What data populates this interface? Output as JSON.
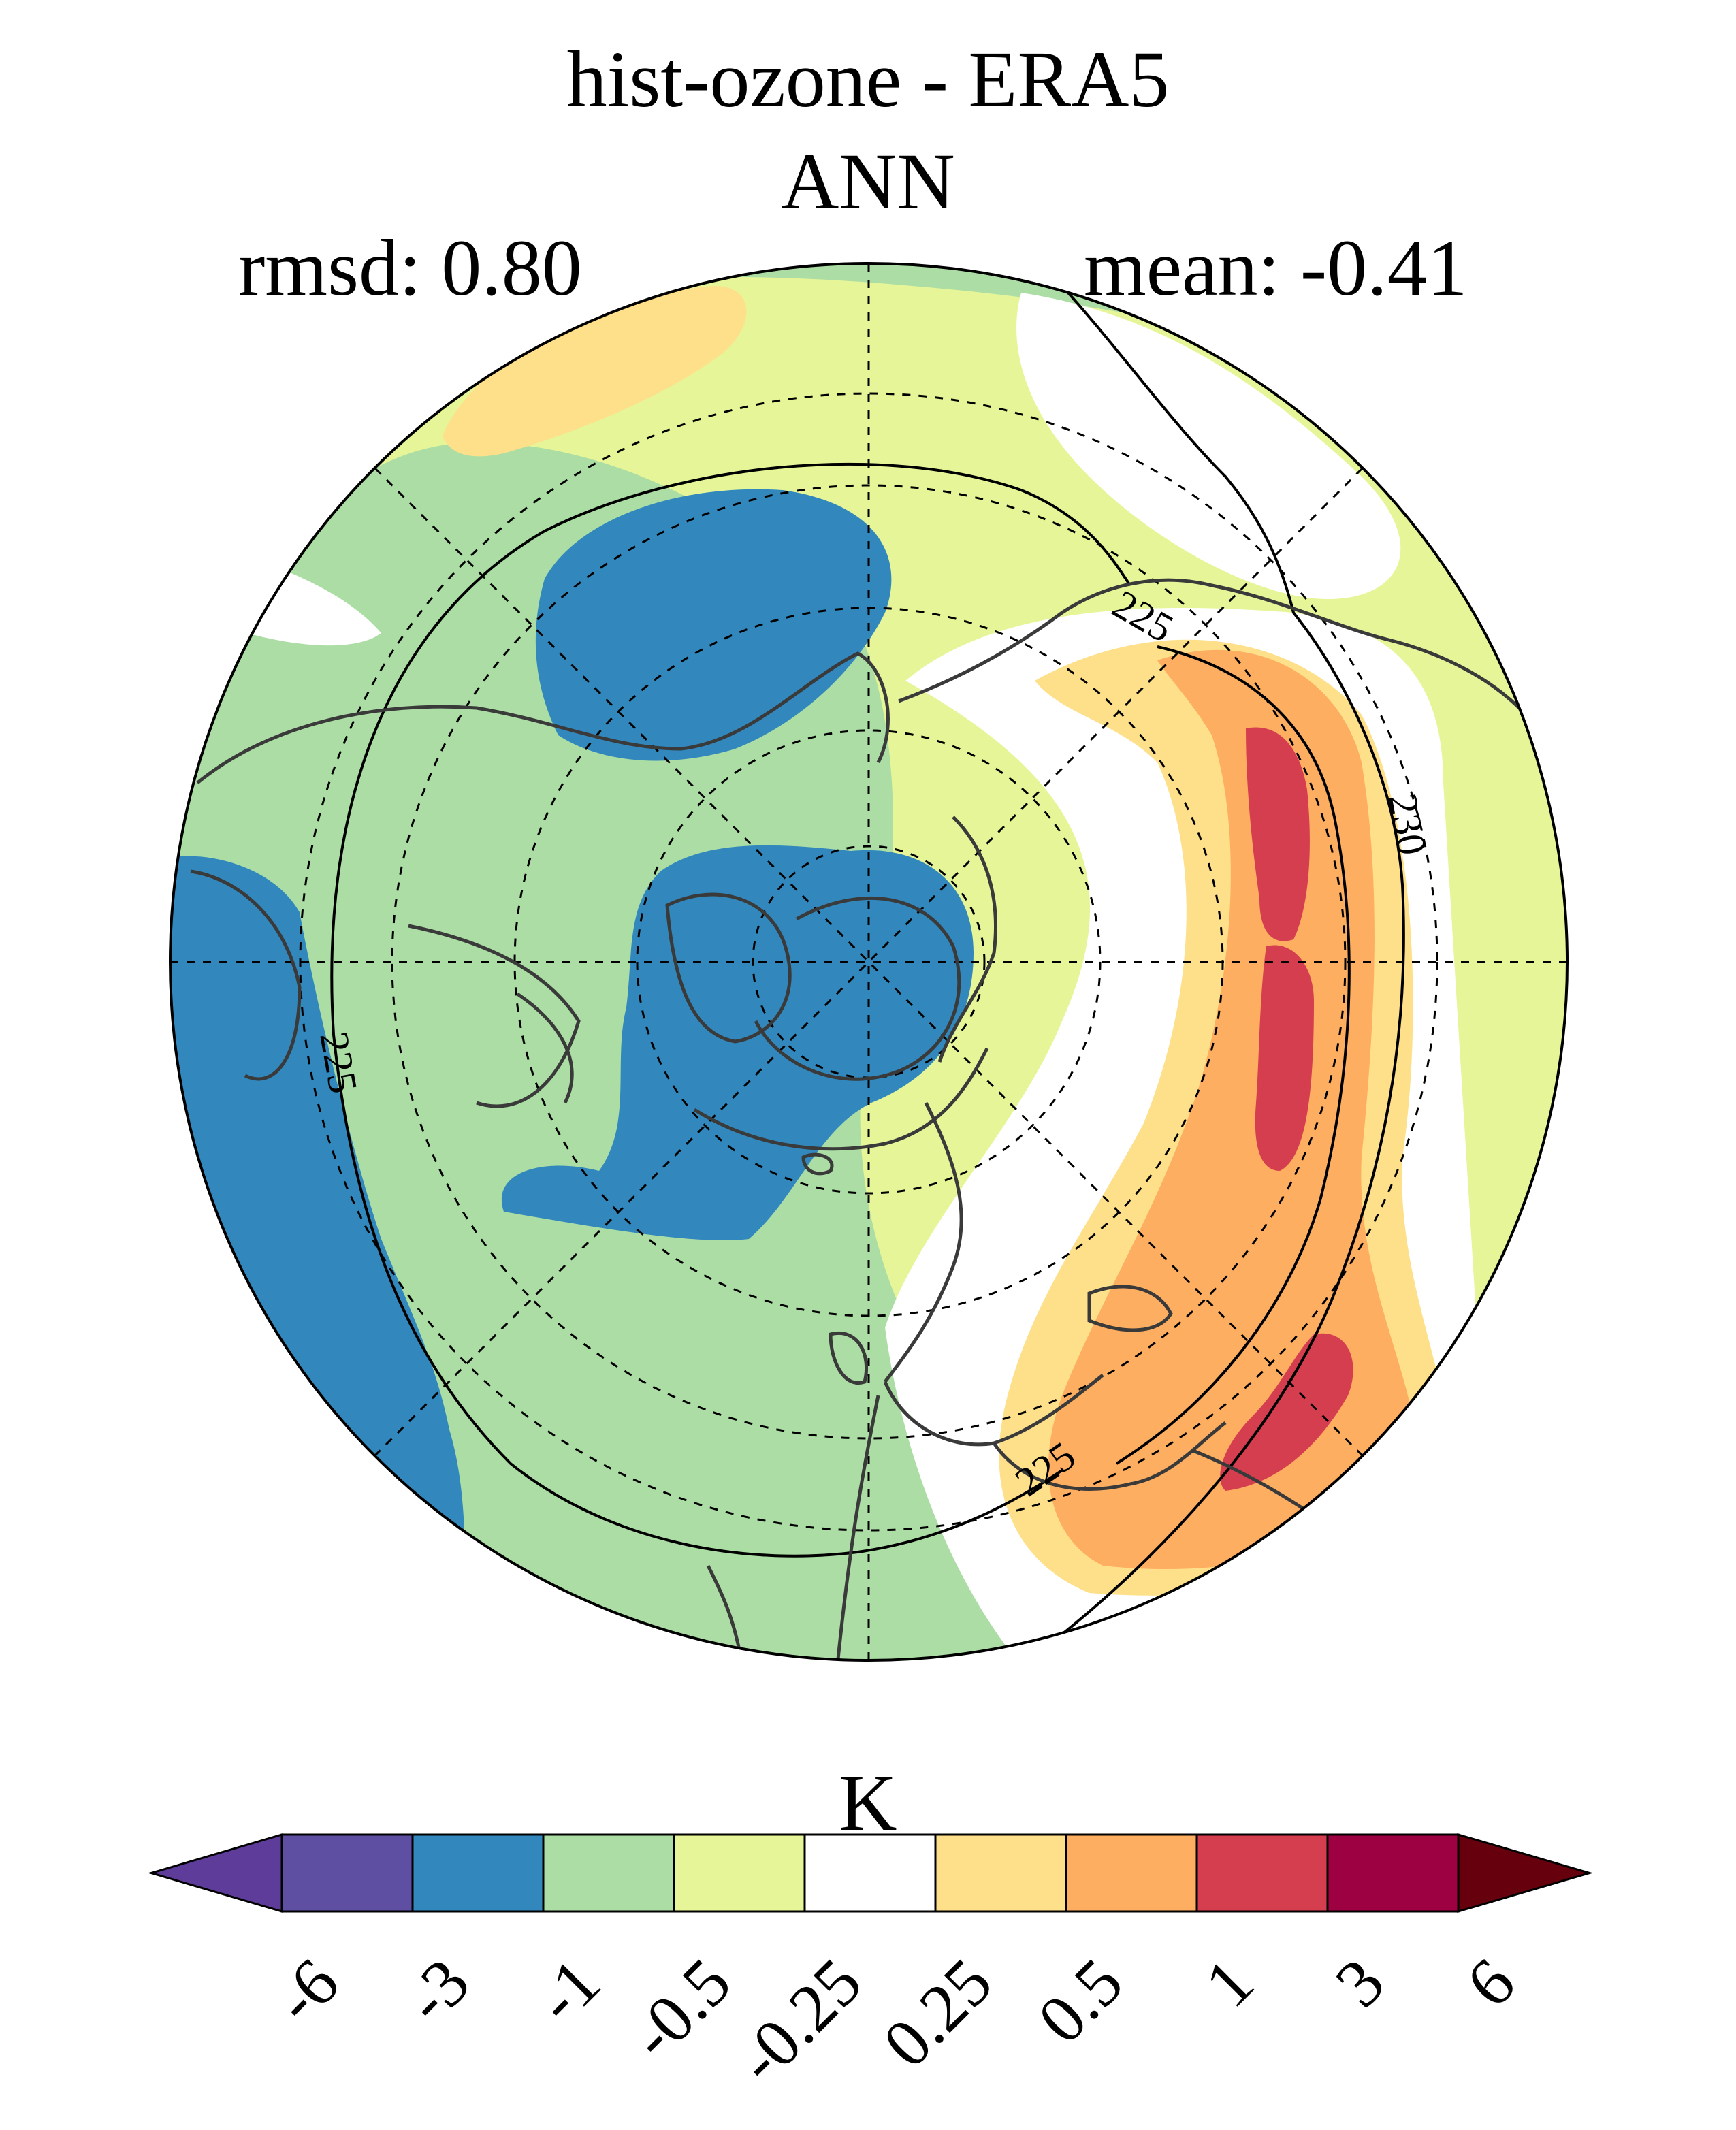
{
  "title": "hist-ozone - ERA5",
  "subtitle": "ANN",
  "rmsd_label": "rmsd: 0.80",
  "mean_label": "mean: -0.41",
  "stats": {
    "rmsd": 0.8,
    "mean": -0.41
  },
  "projection": "north polar stereographic",
  "contour_labels": [
    "225",
    "225",
    "225",
    "230"
  ],
  "colorbar": {
    "unit": "K",
    "levels": [
      "-6",
      "-3",
      "-1",
      "-0.5",
      "-0.25",
      "0.25",
      "0.5",
      "1",
      "3",
      "6"
    ],
    "colors": [
      "#5e3c99",
      "#5e4fa2",
      "#3288bd",
      "#abdda4",
      "#e6f598",
      "#ffffff",
      "#fee08b",
      "#fdae61",
      "#d53e4f",
      "#9e0142",
      "#67000d"
    ],
    "extend": "both"
  },
  "colors": {
    "land_outline": "#3a3a3a",
    "contour_line": "#000000",
    "grid_line": "#000000"
  }
}
